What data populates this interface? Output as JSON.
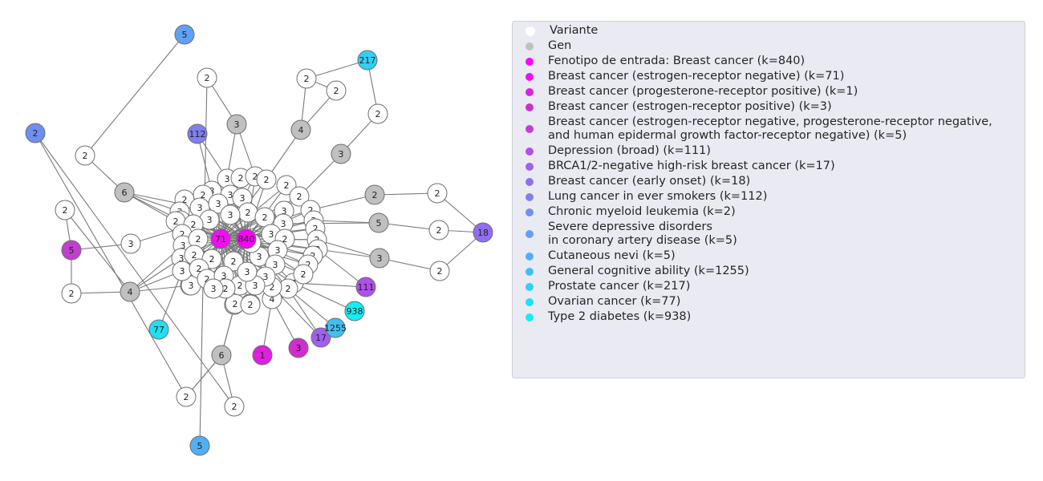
{
  "legend": [
    {
      "label": "Variante",
      "color": "#ffffff"
    },
    {
      "label": "Gen",
      "color": "#c0c0c0"
    },
    {
      "label": "Fenotipo de entrada: Breast cancer (k=840)",
      "color": "#ff00ff"
    },
    {
      "label": "Breast cancer (estrogen-receptor negative) (k=71)",
      "color": "#f00ff0"
    },
    {
      "label": "Breast cancer (progesterone-receptor positive) (k=1)",
      "color": "#e01fe0"
    },
    {
      "label": "Breast cancer (estrogen-receptor positive) (k=3)",
      "color": "#d02fd0"
    },
    {
      "label": "Breast cancer (estrogen-receptor negative, progesterone-receptor negative,\nand human epidermal growth factor-receptor negative) (k=5)",
      "color": "#c03fd0"
    },
    {
      "label": "Depression (broad) (k=111)",
      "color": "#b050e8"
    },
    {
      "label": "BRCA1/2-negative high-risk breast cancer (k=17)",
      "color": "#a05ff0"
    },
    {
      "label": "Breast cancer (early onset) (k=18)",
      "color": "#8f6ff0"
    },
    {
      "label": "Lung cancer in ever smokers (k=112)",
      "color": "#7f7ff0"
    },
    {
      "label": "Chronic myeloid leukemia (k=2)",
      "color": "#6f8ff0"
    },
    {
      "label": "Severe depressive disorders\nin coronary artery disease (k=5)",
      "color": "#60a0f5"
    },
    {
      "label": "Cutaneous nevi (k=5)",
      "color": "#50aff5"
    },
    {
      "label": "General cognitive ability (k=1255)",
      "color": "#3fbff5"
    },
    {
      "label": "Prostate cancer (k=217)",
      "color": "#30cff5"
    },
    {
      "label": "Ovarian cancer (k=77)",
      "color": "#1fdff5"
    },
    {
      "label": "Type 2 diabetes (k=938)",
      "color": "#10eff5"
    }
  ],
  "graph": {
    "nodes": [
      {
        "id": "bc",
        "label": "840",
        "type": "phenotype",
        "color": "#ff00ff"
      },
      {
        "id": "er",
        "label": "71",
        "type": "phenotype",
        "color": "#f00ff0"
      },
      {
        "id": "pr",
        "label": "1",
        "type": "phenotype",
        "color": "#e01fe0"
      },
      {
        "id": "erp",
        "label": "3",
        "type": "phenotype",
        "color": "#d02fd0"
      },
      {
        "id": "tn",
        "label": "5",
        "type": "phenotype",
        "color": "#c03fd0"
      },
      {
        "id": "dep",
        "label": "111",
        "type": "phenotype",
        "color": "#b050e8"
      },
      {
        "id": "brca",
        "label": "17",
        "type": "phenotype",
        "color": "#a05ff0"
      },
      {
        "id": "eo",
        "label": "18",
        "type": "phenotype",
        "color": "#8f6ff0"
      },
      {
        "id": "lung",
        "label": "112",
        "type": "phenotype",
        "color": "#7f7ff0"
      },
      {
        "id": "cml",
        "label": "2",
        "type": "phenotype",
        "color": "#6f8ff0"
      },
      {
        "id": "sdd",
        "label": "5",
        "type": "phenotype",
        "color": "#60a0f5"
      },
      {
        "id": "nevi",
        "label": "5",
        "type": "phenotype",
        "color": "#50aff5"
      },
      {
        "id": "cog",
        "label": "1255",
        "type": "phenotype",
        "color": "#3fbff5"
      },
      {
        "id": "pros",
        "label": "217",
        "type": "phenotype",
        "color": "#30cff5"
      },
      {
        "id": "ova",
        "label": "77",
        "type": "phenotype",
        "color": "#1fdff5"
      },
      {
        "id": "t2d",
        "label": "938",
        "type": "phenotype",
        "color": "#10eff5"
      },
      {
        "id": "gA",
        "label": "3",
        "type": "gene"
      },
      {
        "id": "gB",
        "label": "6",
        "type": "gene"
      },
      {
        "id": "gC",
        "label": "4",
        "type": "gene"
      },
      {
        "id": "gD",
        "label": "3",
        "type": "gene"
      },
      {
        "id": "gE",
        "label": "2",
        "type": "gene"
      },
      {
        "id": "gF",
        "label": "5",
        "type": "gene"
      },
      {
        "id": "gG",
        "label": "3",
        "type": "gene"
      },
      {
        "id": "gH",
        "label": "4",
        "type": "gene"
      },
      {
        "id": "gI",
        "label": "6",
        "type": "gene"
      },
      {
        "id": "o1",
        "label": "2",
        "type": "variant"
      },
      {
        "id": "o2",
        "label": "2",
        "type": "variant"
      },
      {
        "id": "o3",
        "label": "2",
        "type": "variant"
      },
      {
        "id": "o4",
        "label": "2",
        "type": "variant"
      },
      {
        "id": "o5",
        "label": "2",
        "type": "variant"
      },
      {
        "id": "o6",
        "label": "3",
        "type": "variant"
      },
      {
        "id": "o7",
        "label": "2",
        "type": "variant"
      },
      {
        "id": "o8",
        "label": "2",
        "type": "variant"
      },
      {
        "id": "o9",
        "label": "2",
        "type": "variant"
      },
      {
        "id": "o10",
        "label": "2",
        "type": "variant"
      },
      {
        "id": "o11",
        "label": "2",
        "type": "variant"
      },
      {
        "id": "o12",
        "label": "2",
        "type": "variant"
      },
      {
        "id": "o13",
        "label": "2",
        "type": "variant"
      },
      {
        "id": "o14",
        "label": "2",
        "type": "variant"
      },
      {
        "id": "o15",
        "label": "2",
        "type": "variant"
      },
      {
        "id": "o16",
        "label": "4",
        "type": "variant"
      },
      {
        "id": "o17",
        "label": "2",
        "type": "variant"
      },
      {
        "id": "o18",
        "label": "2",
        "type": "variant"
      },
      {
        "id": "c1",
        "label": "3",
        "type": "variant"
      },
      {
        "id": "c2",
        "label": "2",
        "type": "variant"
      },
      {
        "id": "c3",
        "label": "2",
        "type": "variant"
      },
      {
        "id": "c4",
        "label": "2",
        "type": "variant"
      },
      {
        "id": "c5",
        "label": "2",
        "type": "variant"
      },
      {
        "id": "c6",
        "label": "3",
        "type": "variant"
      },
      {
        "id": "c7",
        "label": "3",
        "type": "variant"
      },
      {
        "id": "c8",
        "label": "2",
        "type": "variant"
      },
      {
        "id": "c9",
        "label": "3",
        "type": "variant"
      },
      {
        "id": "c10",
        "label": "2",
        "type": "variant"
      },
      {
        "id": "c11",
        "label": "2",
        "type": "variant"
      },
      {
        "id": "c12",
        "label": "3",
        "type": "variant"
      },
      {
        "id": "c13",
        "label": "3",
        "type": "variant"
      },
      {
        "id": "c14",
        "label": "2",
        "type": "variant"
      },
      {
        "id": "c15",
        "label": "3",
        "type": "variant"
      },
      {
        "id": "c16",
        "label": "2",
        "type": "variant"
      },
      {
        "id": "c17",
        "label": "3",
        "type": "variant"
      },
      {
        "id": "c18",
        "label": "3",
        "type": "variant"
      },
      {
        "id": "c19",
        "label": "2",
        "type": "variant"
      },
      {
        "id": "c20",
        "label": "2",
        "type": "variant"
      },
      {
        "id": "c21",
        "label": "3",
        "type": "variant"
      },
      {
        "id": "c22",
        "label": "2",
        "type": "variant"
      },
      {
        "id": "c23",
        "label": "3",
        "type": "variant"
      },
      {
        "id": "c24",
        "label": "2",
        "type": "variant"
      },
      {
        "id": "c25",
        "label": "2",
        "type": "variant"
      },
      {
        "id": "c26",
        "label": "3",
        "type": "variant"
      },
      {
        "id": "c27",
        "label": "3",
        "type": "variant"
      },
      {
        "id": "c28",
        "label": "2",
        "type": "variant"
      },
      {
        "id": "c29",
        "label": "2",
        "type": "variant"
      },
      {
        "id": "c30",
        "label": "3",
        "type": "variant"
      },
      {
        "id": "c31",
        "label": "2",
        "type": "variant"
      },
      {
        "id": "c32",
        "label": "3",
        "type": "variant"
      },
      {
        "id": "c33",
        "label": "2",
        "type": "variant"
      },
      {
        "id": "c34",
        "label": "3",
        "type": "variant"
      },
      {
        "id": "c35",
        "label": "2",
        "type": "variant"
      },
      {
        "id": "c36",
        "label": "2",
        "type": "variant"
      },
      {
        "id": "c37",
        "label": "3",
        "type": "variant"
      },
      {
        "id": "c38",
        "label": "3",
        "type": "variant"
      },
      {
        "id": "c39",
        "label": "2",
        "type": "variant"
      },
      {
        "id": "c40",
        "label": "3",
        "type": "variant"
      },
      {
        "id": "c41",
        "label": "2",
        "type": "variant"
      },
      {
        "id": "c42",
        "label": "3",
        "type": "variant"
      },
      {
        "id": "c43",
        "label": "2",
        "type": "variant"
      },
      {
        "id": "c44",
        "label": "2",
        "type": "variant"
      },
      {
        "id": "c45",
        "label": "3",
        "type": "variant"
      },
      {
        "id": "c46",
        "label": "2",
        "type": "variant"
      },
      {
        "id": "c47",
        "label": "3",
        "type": "variant"
      },
      {
        "id": "c48",
        "label": "2",
        "type": "variant"
      },
      {
        "id": "c49",
        "label": "2",
        "type": "variant"
      },
      {
        "id": "c50",
        "label": "2",
        "type": "variant"
      },
      {
        "id": "c51",
        "label": "2",
        "type": "variant"
      },
      {
        "id": "c52",
        "label": "2",
        "type": "variant"
      },
      {
        "id": "c53",
        "label": "3",
        "type": "variant"
      },
      {
        "id": "c54",
        "label": "2",
        "type": "variant"
      },
      {
        "id": "c55",
        "label": "2",
        "type": "variant"
      },
      {
        "id": "c56",
        "label": "3",
        "type": "variant"
      },
      {
        "id": "c57",
        "label": "2",
        "type": "variant"
      },
      {
        "id": "c58",
        "label": "3",
        "type": "variant"
      },
      {
        "id": "c59",
        "label": "2",
        "type": "variant"
      },
      {
        "id": "c60",
        "label": "3",
        "type": "variant"
      }
    ],
    "edges": [
      [
        "nevi",
        "o1"
      ],
      [
        "o1",
        "gA"
      ],
      [
        "gA",
        "c1"
      ],
      [
        "gA",
        "c3"
      ],
      [
        "pros",
        "o2"
      ],
      [
        "pros",
        "o4"
      ],
      [
        "o2",
        "o3"
      ],
      [
        "o3",
        "gC"
      ],
      [
        "o2",
        "gC"
      ],
      [
        "gC",
        "c4"
      ],
      [
        "o4",
        "gD"
      ],
      [
        "gD",
        "c8"
      ],
      [
        "lung",
        "c1"
      ],
      [
        "lung",
        "c6"
      ],
      [
        "sdd",
        "o5"
      ],
      [
        "o5",
        "gB"
      ],
      [
        "gB",
        "c12"
      ],
      [
        "gB",
        "c13"
      ],
      [
        "gB",
        "c17"
      ],
      [
        "gB",
        "c20"
      ],
      [
        "tn",
        "o6"
      ],
      [
        "tn",
        "o7"
      ],
      [
        "tn",
        "o8"
      ],
      [
        "o6",
        "c24"
      ],
      [
        "o7",
        "gH"
      ],
      [
        "o8",
        "gH"
      ],
      [
        "gH",
        "c30"
      ],
      [
        "gH",
        "c32"
      ],
      [
        "gH",
        "c38"
      ],
      [
        "gH",
        "c40"
      ],
      [
        "ova",
        "c40"
      ],
      [
        "gE",
        "o9"
      ],
      [
        "gE",
        "c14"
      ],
      [
        "o9",
        "eo"
      ],
      [
        "gF",
        "o10"
      ],
      [
        "gF",
        "c22"
      ],
      [
        "gF",
        "c26"
      ],
      [
        "o10",
        "eo"
      ],
      [
        "gG",
        "o11"
      ],
      [
        "gG",
        "c28"
      ],
      [
        "gG",
        "c33"
      ],
      [
        "o11",
        "eo"
      ],
      [
        "dep",
        "c33"
      ],
      [
        "dep",
        "c34"
      ],
      [
        "t2d",
        "c34"
      ],
      [
        "cog",
        "c36"
      ],
      [
        "brca",
        "c36"
      ],
      [
        "brca",
        "c39"
      ],
      [
        "erp",
        "o16"
      ],
      [
        "pr",
        "o16"
      ],
      [
        "gI",
        "c43"
      ],
      [
        "gI",
        "o13"
      ],
      [
        "gI",
        "o14"
      ],
      [
        "o13",
        "cml"
      ],
      [
        "o14",
        "cml"
      ],
      [
        "o17",
        "o18"
      ]
    ]
  }
}
